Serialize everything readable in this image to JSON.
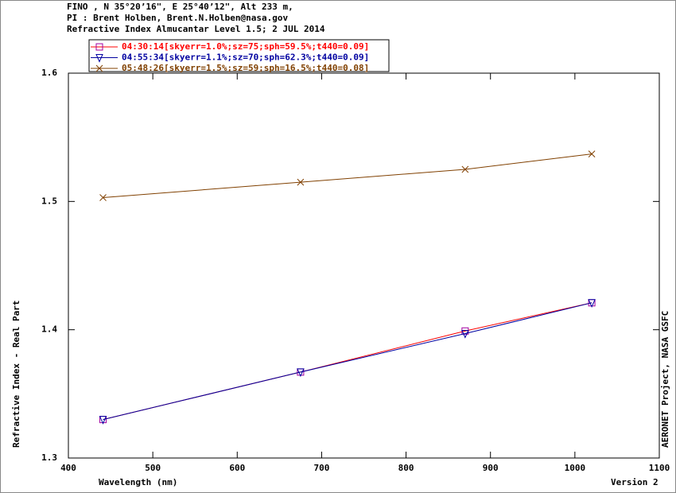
{
  "chart_data": {
    "type": "line",
    "title": [
      "FINO , N 35°20’16\", E 25°40’12\", Alt 233 m,",
      "PI : Brent Holben, Brent.N.Holben@nasa.gov",
      "Refractive Index Almucantar Level 1.5; 2 JUL 2014"
    ],
    "x_label": "Wavelength (nm)",
    "y_label": "Refractive Index - Real Part",
    "right_label": "AERONET Project, NASA GSFC",
    "footer": "Version 2",
    "x": [
      441,
      675,
      870,
      1020
    ],
    "series": [
      {
        "name": "04:30:14[skyerr=1.0%;sz=75;sph=59.5%;t440=0.09]",
        "color": "#ff0000",
        "marker_color": "#a000a0",
        "marker": "square",
        "values": [
          1.33,
          1.367,
          1.399,
          1.421
        ]
      },
      {
        "name": "04:55:34[skyerr=1.1%;sz=70;sph=62.3%;t440=0.09]",
        "color": "#0000a0",
        "marker_color": "#0000a0",
        "marker": "triangle-down",
        "values": [
          1.33,
          1.367,
          1.397,
          1.421
        ]
      },
      {
        "name": "05:48:26[skyerr=1.5%;sz=59;sph=16.5%;t440=0.08]",
        "color": "#804000",
        "marker_color": "#804000",
        "marker": "x",
        "values": [
          1.503,
          1.515,
          1.525,
          1.537
        ]
      }
    ],
    "xlim": [
      400,
      1100
    ],
    "xticks": [
      400,
      500,
      600,
      700,
      800,
      900,
      1000,
      1100
    ],
    "ylim": [
      1.3,
      1.6
    ],
    "yticks": [
      1.3,
      1.4,
      1.5,
      1.6
    ]
  }
}
